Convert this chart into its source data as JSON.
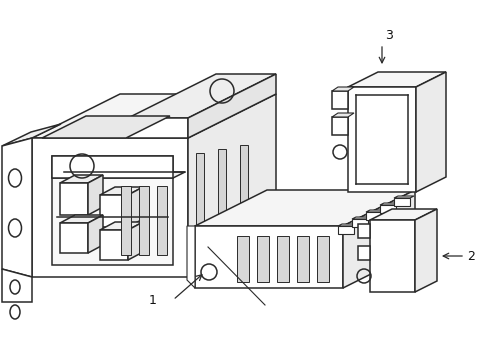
{
  "bg_color": "#ffffff",
  "line_color": "#2a2a2a",
  "line_width": 1.1,
  "figsize": [
    4.89,
    3.6
  ],
  "dpi": 100
}
